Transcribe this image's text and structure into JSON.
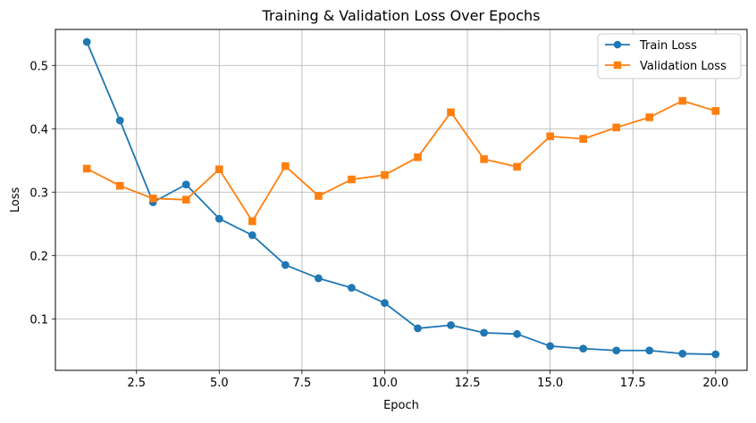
{
  "chart_data": {
    "type": "line",
    "title": "Training & Validation Loss Over Epochs",
    "xlabel": "Epoch",
    "ylabel": "Loss",
    "xlim": [
      0.05,
      20.95
    ],
    "ylim": [
      0.0187,
      0.5567
    ],
    "xticks": [
      2.5,
      5.0,
      7.5,
      10.0,
      12.5,
      15.0,
      17.5,
      20.0
    ],
    "xtick_labels": [
      "2.5",
      "5.0",
      "7.5",
      "10.0",
      "12.5",
      "15.0",
      "17.5",
      "20.0"
    ],
    "yticks": [
      0.1,
      0.2,
      0.3,
      0.4,
      0.5
    ],
    "ytick_labels": [
      "0.1",
      "0.2",
      "0.3",
      "0.4",
      "0.5"
    ],
    "grid": true,
    "legend_position": "upper right",
    "x": [
      1,
      2,
      3,
      4,
      5,
      6,
      7,
      8,
      9,
      10,
      11,
      12,
      13,
      14,
      15,
      16,
      17,
      18,
      19,
      20
    ],
    "series": [
      {
        "name": "Train Loss",
        "color": "#1f77b4",
        "marker": "circle",
        "values": [
          0.537,
          0.413,
          0.284,
          0.312,
          0.258,
          0.232,
          0.185,
          0.164,
          0.149,
          0.125,
          0.085,
          0.09,
          0.078,
          0.076,
          0.057,
          0.053,
          0.05,
          0.05,
          0.045,
          0.044
        ]
      },
      {
        "name": "Validation Loss",
        "color": "#ff7f0e",
        "marker": "square",
        "values": [
          0.337,
          0.31,
          0.29,
          0.288,
          0.336,
          0.254,
          0.341,
          0.294,
          0.32,
          0.327,
          0.355,
          0.426,
          0.352,
          0.34,
          0.388,
          0.384,
          0.402,
          0.418,
          0.444,
          0.428
        ]
      }
    ]
  }
}
